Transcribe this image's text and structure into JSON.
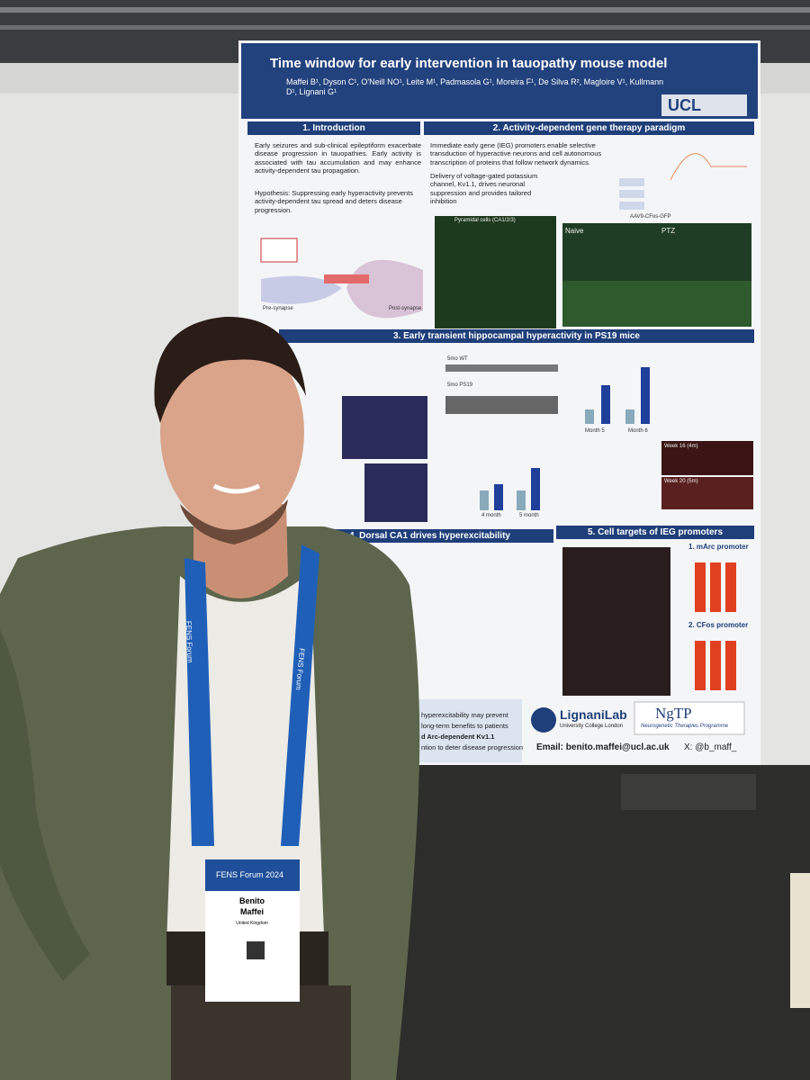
{
  "poster": {
    "title": "Time window for early intervention in tauopathy mouse model",
    "authors": "Maffei B¹, Dyson C¹, O'Neill NO¹, Leite M¹, Padmasola G¹, Moreira F¹, De Silva R², Magloire V¹, Kullmann D¹, Lignani G¹",
    "logo": "UCL",
    "sections": [
      {
        "heading": "1. Introduction",
        "text": [
          "Early seizures and sub-clinical epileptiform exacerbate disease progression in tauopathies. Early activity is associated with tau accumulation and may enhance activity-dependent tau propagation.",
          "Hypothesis: Suppressing early hyperactivity prevents activity-dependent tau spread and deters disease progression."
        ],
        "labels": [
          "Pre-synapse",
          "Post-synapse"
        ]
      },
      {
        "heading": "2. Activity-dependent gene therapy paradigm",
        "text": [
          "Immediate early gene (IEG) promoters enable selective transduction of hyperactive neurons and cell autonomous transcription of proteins that follow network dynamics.",
          "Delivery of voltage-gated potassium channel, Kv1.1, drives neuronal suppression and provides tailored inhibition"
        ],
        "labels": [
          "Pyramidal cells (CA1/2/3)",
          "AAV9-CFos-GFP",
          "Naive",
          "PTZ"
        ]
      },
      {
        "heading": "3. Early transient hippocampal hyperactivity in PS19 mice",
        "labels": [
          "5mo WT",
          "5mo PS19",
          "Month 5",
          "Month 6",
          "4 month",
          "5 month",
          "Week 16 (4m)",
          "Week 20 (5m)"
        ]
      },
      {
        "heading": "4. Dorsal CA1 drives hyperexcitability"
      },
      {
        "heading": "5. Cell targets of IEG promoters",
        "labels": [
          "1. mArc promoter",
          "2. CFos promoter"
        ]
      }
    ],
    "conclusion": [
      "hyperexcitability may prevent",
      "long-term benefits to patients",
      "d Arc-dependent Kv1.1",
      "ntion  to deter disease progression"
    ],
    "lab": "LignaniLab",
    "lab_sub": "University College London",
    "ngtp": "NgTP",
    "ngtp_sub": "Neurogenetic Therapies Programme",
    "email": "Email: benito.maffei@ucl.ac.uk",
    "handle": "X: @b_maff_"
  },
  "lanyard": "FENS Forum",
  "badge": {
    "event": "FENS Forum 2024",
    "first_name": "Benito",
    "last_name": "Maffei",
    "country": "United Kingdom"
  }
}
